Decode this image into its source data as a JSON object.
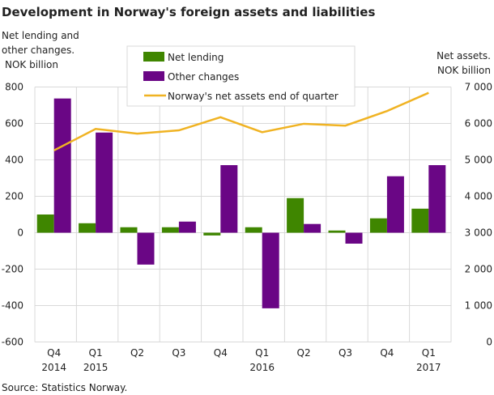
{
  "chart_data": {
    "type": "bar",
    "title": "Development in Norway's foreign assets and liabilities",
    "ylabel": "Net lending and other changes. NOK billion",
    "ylabel_lines": [
      "Net lending and",
      "other changes.",
      "NOK billion"
    ],
    "y2label_lines": [
      "Net assets.",
      "NOK billion"
    ],
    "source": "Source: Statistics Norway.",
    "categories": [
      "Q4 2014",
      "Q1 2015",
      "Q2",
      "Q3",
      "Q4",
      "Q1 2016",
      "Q2",
      "Q3",
      "Q4",
      "Q1 2017"
    ],
    "category_lines": [
      [
        "Q4",
        "2014"
      ],
      [
        "Q1",
        "2015"
      ],
      [
        "Q2",
        ""
      ],
      [
        "Q3",
        ""
      ],
      [
        "Q4",
        ""
      ],
      [
        "Q1",
        "2016"
      ],
      [
        "Q2",
        ""
      ],
      [
        "Q3",
        ""
      ],
      [
        "Q4",
        ""
      ],
      [
        "Q1",
        "2017"
      ]
    ],
    "ylim": [
      -600,
      800
    ],
    "yticks": [
      -600,
      -400,
      -200,
      0,
      200,
      400,
      600,
      800
    ],
    "ytick_labels": [
      "-600",
      "-400",
      "-200",
      "0",
      "200",
      "400",
      "600",
      "800"
    ],
    "y2lim": [
      0,
      7000
    ],
    "y2ticks": [
      0,
      1000,
      2000,
      3000,
      4000,
      5000,
      6000,
      7000
    ],
    "y2tick_labels": [
      "0",
      "1 000",
      "2 000",
      "3 000",
      "4 000",
      "5 000",
      "6 000",
      "7 000"
    ],
    "grid": true,
    "legend_placement": "top-center",
    "series": [
      {
        "name": "Net lending",
        "type": "bar",
        "axis": "left",
        "color": "#3f8600",
        "values": [
          100,
          52,
          30,
          30,
          -15,
          30,
          190,
          12,
          79,
          132
        ]
      },
      {
        "name": "Other changes",
        "type": "bar",
        "axis": "left",
        "color": "#6a0685",
        "values": [
          737,
          550,
          -175,
          61,
          371,
          -415,
          48,
          -60,
          310,
          371
        ]
      },
      {
        "name": "Norway's net assets end of quarter",
        "type": "line",
        "axis": "right",
        "color": "#f0b323",
        "values": [
          5260,
          5850,
          5720,
          5810,
          6170,
          5760,
          5990,
          5940,
          6340,
          6840
        ]
      }
    ]
  }
}
